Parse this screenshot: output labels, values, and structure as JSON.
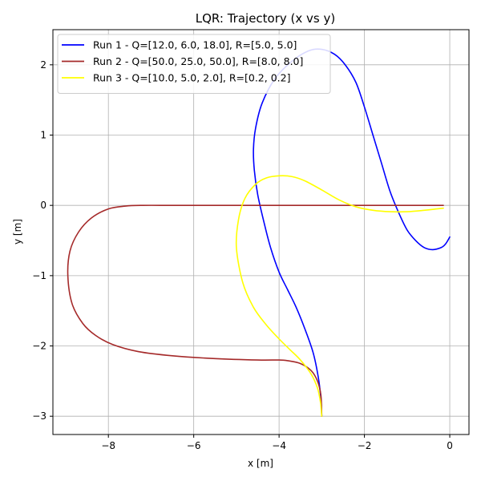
{
  "chart_data": {
    "type": "line",
    "title": "LQR: Trajectory (x vs y)",
    "xlabel": "x [m]",
    "ylabel": "y [m]",
    "xlim": [
      -9.3,
      0.45
    ],
    "ylim": [
      -3.26,
      2.5
    ],
    "xticks": [
      -8,
      -6,
      -4,
      -2,
      0
    ],
    "yticks": [
      -3,
      -2,
      -1,
      0,
      1,
      2
    ],
    "xtick_labels": [
      "−8",
      "−6",
      "−4",
      "−2",
      "0"
    ],
    "ytick_labels": [
      "−3",
      "−2",
      "−1",
      "0",
      "1",
      "2"
    ],
    "grid": true,
    "legend_position": "top-left",
    "series": [
      {
        "name": "Run 1 - Q=[12.0, 6.0, 18.0], R=[5.0, 5.0]",
        "color": "#0000ff",
        "x": [
          -3.0,
          -3.02,
          -3.08,
          -3.2,
          -3.4,
          -3.6,
          -3.8,
          -4.0,
          -4.2,
          -4.35,
          -4.5,
          -4.58,
          -4.6,
          -4.55,
          -4.4,
          -4.1,
          -3.7,
          -3.3,
          -3.0,
          -2.7,
          -2.45,
          -2.2,
          -2.0,
          -1.8,
          -1.6,
          -1.4,
          -1.2,
          -1.0,
          -0.8,
          -0.6,
          -0.4,
          -0.2,
          -0.1,
          0.0
        ],
        "y": [
          -3.0,
          -2.75,
          -2.45,
          -2.1,
          -1.75,
          -1.45,
          -1.2,
          -0.95,
          -0.6,
          -0.25,
          0.15,
          0.5,
          0.8,
          1.1,
          1.45,
          1.8,
          2.05,
          2.2,
          2.22,
          2.15,
          2.0,
          1.75,
          1.4,
          1.0,
          0.6,
          0.2,
          -0.1,
          -0.35,
          -0.5,
          -0.6,
          -0.63,
          -0.6,
          -0.55,
          -0.45
        ]
      },
      {
        "name": "Run 2 - Q=[50.0, 25.0, 50.0], R=[8.0, 8.0]",
        "color": "#a52a2a",
        "x": [
          -3.0,
          -3.02,
          -3.1,
          -3.25,
          -3.5,
          -3.8,
          -4.0,
          -4.5,
          -5.5,
          -6.5,
          -7.3,
          -7.9,
          -8.3,
          -8.6,
          -8.85,
          -8.95,
          -8.9,
          -8.7,
          -8.4,
          -8.0,
          -7.6,
          -7.2,
          -6.5,
          -5.5,
          -4.5,
          -3.5,
          -2.5,
          -1.5,
          -0.8,
          -0.15
        ],
        "y": [
          -3.0,
          -2.7,
          -2.5,
          -2.35,
          -2.25,
          -2.21,
          -2.2,
          -2.2,
          -2.18,
          -2.14,
          -2.08,
          -1.98,
          -1.85,
          -1.68,
          -1.4,
          -1.0,
          -0.65,
          -0.38,
          -0.18,
          -0.05,
          -0.01,
          0.0,
          0.0,
          0.0,
          0.0,
          0.0,
          0.0,
          0.0,
          0.0,
          0.0
        ]
      },
      {
        "name": "Run 3 - Q=[10.0, 5.0, 2.0], R=[0.2, 0.2]",
        "color": "#ffff00",
        "x": [
          -3.0,
          -3.03,
          -3.1,
          -3.25,
          -3.5,
          -3.75,
          -4.0,
          -4.3,
          -4.6,
          -4.85,
          -5.0,
          -4.95,
          -4.8,
          -4.55,
          -4.3,
          -4.0,
          -3.7,
          -3.4,
          -3.0,
          -2.6,
          -2.2,
          -1.8,
          -1.4,
          -1.0,
          -0.6,
          -0.3,
          -0.15
        ],
        "y": [
          -3.0,
          -2.8,
          -2.6,
          -2.4,
          -2.2,
          -2.05,
          -1.9,
          -1.7,
          -1.45,
          -1.1,
          -0.6,
          -0.2,
          0.1,
          0.3,
          0.39,
          0.42,
          0.41,
          0.35,
          0.22,
          0.08,
          -0.02,
          -0.07,
          -0.09,
          -0.09,
          -0.07,
          -0.05,
          -0.04
        ]
      }
    ]
  }
}
